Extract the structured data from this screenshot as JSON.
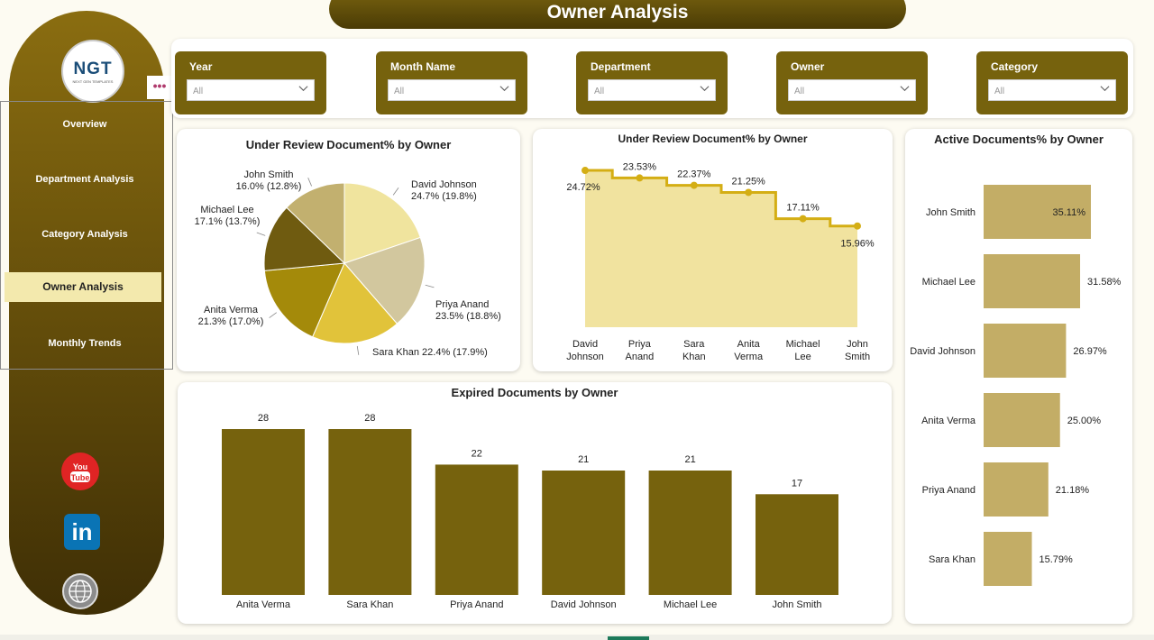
{
  "header": {
    "title": "Owner Analysis"
  },
  "sidebar": {
    "logo_text": "NGT",
    "logo_subtext": "NEXT GEN TEMPLATES",
    "more_label": "•••",
    "items": [
      {
        "label": "Overview",
        "active": false
      },
      {
        "label": "Department Analysis",
        "active": false
      },
      {
        "label": "Category Analysis",
        "active": false
      },
      {
        "label": "Owner Analysis",
        "active": true
      },
      {
        "label": "Monthly Trends",
        "active": false
      }
    ],
    "social": [
      {
        "icon": "youtube-icon",
        "label": "You Tube",
        "color": "#e02424"
      },
      {
        "icon": "linkedin-icon",
        "label": "in",
        "color": "#0a74b5"
      },
      {
        "icon": "globe-icon",
        "label": "www",
        "color": "#8c8c8c"
      }
    ]
  },
  "filters": [
    {
      "label": "Year",
      "value": "All"
    },
    {
      "label": "Month Name",
      "value": "All"
    },
    {
      "label": "Department",
      "value": "All"
    },
    {
      "label": "Owner",
      "value": "All"
    },
    {
      "label": "Category",
      "value": "All"
    }
  ],
  "colors": {
    "accent": "#76620d",
    "highlight": "#f3e9ad",
    "bar_light": "#c3ad66",
    "area_fill": "#f1e39f",
    "line": "#d4ae14"
  },
  "chart_data": [
    {
      "type": "pie",
      "title": "Under Review Document% by Owner",
      "slices": [
        {
          "name": "David Johnson",
          "value": 19.8,
          "label": "24.7% (19.8%)",
          "color": "#f0e49e"
        },
        {
          "name": "Priya Anand",
          "value": 18.8,
          "label": "23.5% (18.8%)",
          "color": "#d2c79e"
        },
        {
          "name": "Sara Khan",
          "value": 17.9,
          "label": "22.4% (17.9%)",
          "color": "#e1c33a"
        },
        {
          "name": "Anita Verma",
          "value": 17.0,
          "label": "21.3% (17.0%)",
          "color": "#a48a0a"
        },
        {
          "name": "Michael Lee",
          "value": 13.7,
          "label": "17.1% (13.7%)",
          "color": "#6f5b10"
        },
        {
          "name": "John Smith",
          "value": 12.8,
          "label": "16.0% (12.8%)",
          "color": "#c2b06f"
        }
      ]
    },
    {
      "type": "area",
      "title": "Under Review Document% by Owner",
      "categories": [
        "David Johnson",
        "Priya Anand",
        "Sara Khan",
        "Anita Verma",
        "Michael Lee",
        "John Smith"
      ],
      "values": [
        24.72,
        23.53,
        22.37,
        21.25,
        17.11,
        15.96
      ],
      "labels": [
        "24.72%",
        "23.53%",
        "22.37%",
        "21.25%",
        "17.11%",
        "15.96%"
      ],
      "ylim": [
        0,
        27
      ],
      "step": true
    },
    {
      "type": "bar",
      "orientation": "horizontal",
      "title": "Active Documents% by Owner",
      "categories": [
        "John Smith",
        "Michael Lee",
        "David Johnson",
        "Anita Verma",
        "Priya Anand",
        "Sara Khan"
      ],
      "values": [
        35.11,
        31.58,
        26.97,
        25.0,
        21.18,
        15.79
      ],
      "labels": [
        "35.11%",
        "31.58%",
        "26.97%",
        "25.00%",
        "21.18%",
        "15.79%"
      ]
    },
    {
      "type": "bar",
      "title": "Expired Documents by Owner",
      "categories": [
        "Anita Verma",
        "Sara Khan",
        "Priya Anand",
        "David Johnson",
        "Michael Lee",
        "John Smith"
      ],
      "values": [
        28,
        28,
        22,
        21,
        21,
        17
      ],
      "ylim": [
        0,
        30
      ]
    }
  ]
}
